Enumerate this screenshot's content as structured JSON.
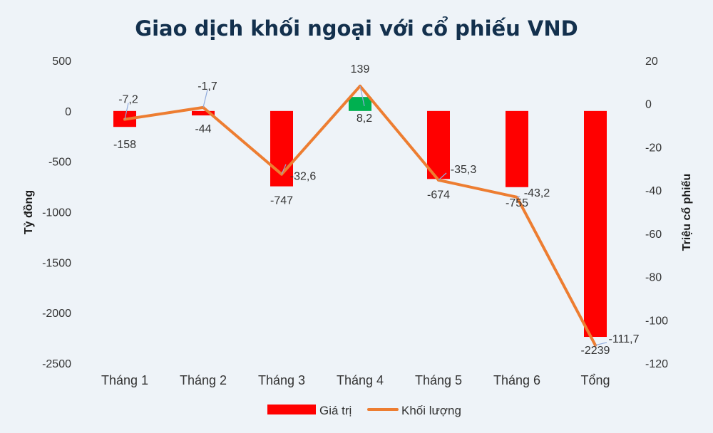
{
  "chart_data": {
    "type": "bar+line",
    "title": "Giao dịch khối ngoại với cổ phiếu VND",
    "categories": [
      "Tháng 1",
      "Tháng 2",
      "Tháng 3",
      "Tháng 4",
      "Tháng 5",
      "Tháng 6",
      "Tổng"
    ],
    "series": [
      {
        "name": "Giá trị",
        "type": "bar",
        "axis": "left",
        "values": [
          -158,
          -44,
          -747,
          139,
          -674,
          -755,
          -2239
        ],
        "labels": [
          "-158",
          "-44",
          "-747",
          "139",
          "-674",
          "-755",
          "-2239"
        ]
      },
      {
        "name": "Khối lượng",
        "type": "line",
        "axis": "right",
        "values": [
          -7.2,
          -1.7,
          -32.6,
          8.2,
          -35.3,
          -43.2,
          -111.7
        ],
        "labels": [
          "-7,2",
          "-1,7",
          "-32,6",
          "8,2",
          "-35,3",
          "-43,2",
          "-111,7"
        ]
      }
    ],
    "y_left": {
      "label": "Tỷ đồng",
      "ylim": [
        -2500,
        500
      ],
      "ticks": [
        500,
        0,
        -500,
        -1000,
        -1500,
        -2000,
        -2500
      ],
      "tick_labels": [
        "500",
        "0",
        "-500",
        "-1000",
        "-1500",
        "-2000",
        "-2500"
      ]
    },
    "y_right": {
      "label": "Triệu cổ phiếu",
      "ylim": [
        -120,
        20
      ],
      "ticks": [
        20,
        0,
        -20,
        -40,
        -60,
        -80,
        -100,
        -120
      ],
      "tick_labels": [
        "20",
        "0",
        "-20",
        "-40",
        "-60",
        "-80",
        "-100",
        "-120"
      ]
    },
    "grid": false,
    "legend_position": "bottom",
    "colors": {
      "bar_negative": "#ff0000",
      "bar_positive": "#00b050",
      "line": "#ed7d31",
      "leader": "#8faadc",
      "title": "#13304d"
    }
  }
}
